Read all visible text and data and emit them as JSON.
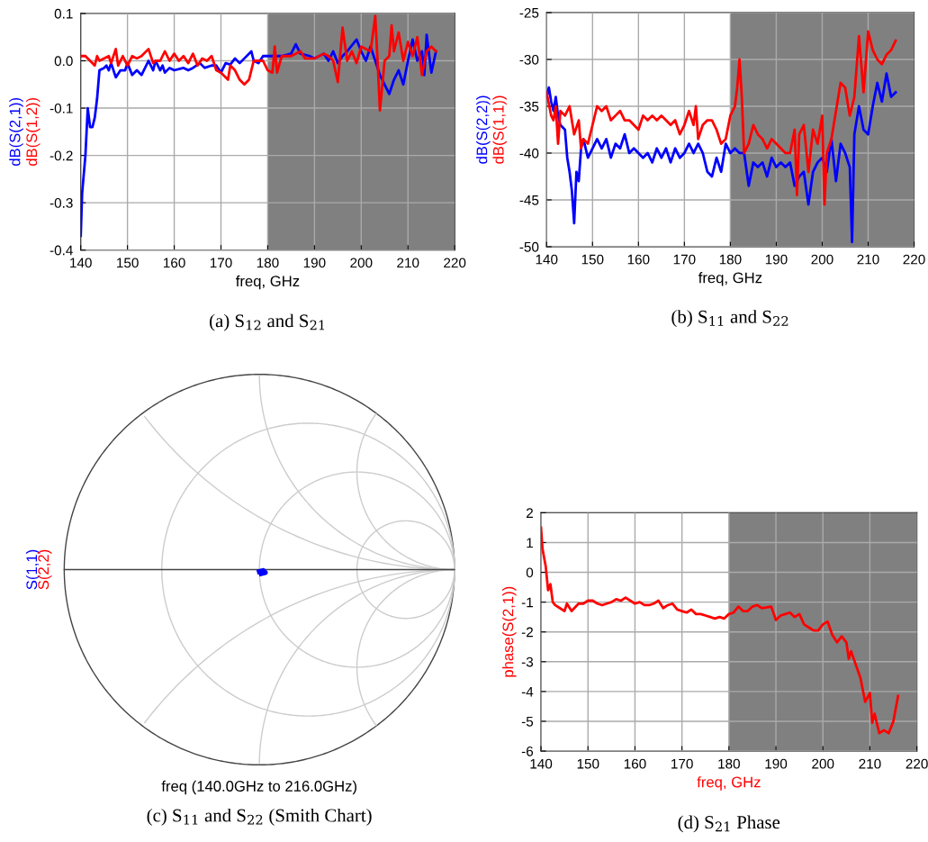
{
  "chart_data": [
    {
      "type": "line",
      "xlabel": "freq, GHz",
      "xlim": [
        140,
        220
      ],
      "xticks": [
        140,
        150,
        160,
        170,
        180,
        190,
        200,
        210,
        220
      ],
      "ylim": [
        -0.4,
        0.1
      ],
      "yticks": [
        {
          "value": -0.4,
          "label": "-0.4"
        },
        {
          "value": -0.3,
          "label": "-0.3"
        },
        {
          "value": -0.2,
          "label": "-0.2"
        },
        {
          "value": -0.1,
          "label": "-0.1"
        },
        {
          "value": 0,
          "label": "0.0"
        },
        {
          "value": 0.1,
          "label": "0.1"
        }
      ],
      "grid": true,
      "bands": [
        {
          "axis": "x",
          "from": 180,
          "to": 220,
          "color": "#808080"
        }
      ],
      "annotations": [
        "(a) S$_{12}$ and S$_{21}$"
      ],
      "series": [
        {
          "name": "dB(S(2,1))",
          "color": "#0000ff",
          "x": [
            140,
            140.3,
            141,
            141.5,
            142,
            142.5,
            143,
            143.5,
            144,
            145,
            145.5,
            146,
            146.5,
            147.5,
            148.5,
            149.5,
            150,
            151,
            152,
            153,
            154.5,
            155.5,
            156,
            157,
            157.5,
            158,
            159,
            160,
            162,
            163,
            164,
            165.5,
            166.5,
            168,
            169,
            170,
            171,
            172,
            173,
            174,
            175,
            176.5,
            177,
            178,
            179,
            180,
            181,
            183,
            185,
            186,
            187,
            189,
            190,
            192,
            193,
            194,
            195,
            196,
            197,
            199,
            200,
            201,
            202,
            203,
            204,
            206,
            207,
            208,
            209,
            210,
            211,
            212,
            213,
            213.5,
            214,
            215,
            216
          ],
          "values": [
            -0.37,
            -0.28,
            -0.2,
            -0.1,
            -0.14,
            -0.14,
            -0.12,
            -0.08,
            -0.02,
            -0.015,
            -0.01,
            -0.02,
            -0.005,
            -0.035,
            -0.02,
            -0.02,
            -0.005,
            -0.03,
            -0.02,
            -0.03,
            0.0,
            -0.02,
            0.0,
            -0.02,
            -0.01,
            -0.025,
            -0.015,
            -0.02,
            -0.015,
            -0.02,
            -0.015,
            -0.005,
            -0.015,
            -0.01,
            -0.01,
            -0.025,
            -0.005,
            -0.008,
            0.005,
            -0.005,
            0.005,
            0.02,
            0.0,
            -0.005,
            0.01,
            0.01,
            0.01,
            0.01,
            0.015,
            0.035,
            0.015,
            0.01,
            0.005,
            0.015,
            0.0,
            0.02,
            -0.005,
            0.01,
            0.02,
            0.045,
            0.02,
            0.0,
            0.03,
            0.0,
            -0.03,
            -0.07,
            -0.04,
            -0.02,
            -0.05,
            0.0,
            0.045,
            0.0,
            0.02,
            -0.03,
            0.055,
            -0.025,
            0.02
          ]
        },
        {
          "name": "dB(S(1,2))",
          "color": "#ff0000",
          "x": [
            140,
            141,
            142,
            143,
            143.5,
            144,
            146,
            146.5,
            147.5,
            148,
            149,
            150,
            151,
            152,
            153,
            154.5,
            155.5,
            156,
            157,
            158,
            159,
            160,
            161,
            162,
            163,
            164,
            165,
            166,
            167,
            168,
            169,
            170,
            171.5,
            172,
            173,
            174,
            175,
            176,
            177,
            178,
            179,
            180,
            181,
            181.5,
            182,
            183,
            185,
            187,
            188,
            190,
            192,
            193,
            194,
            195,
            196,
            197,
            198,
            199,
            200,
            202,
            203,
            203.5,
            204,
            205,
            206,
            206.5,
            207,
            208,
            209,
            210,
            211,
            212,
            213,
            214,
            215,
            216
          ],
          "values": [
            0.01,
            0.01,
            0.0,
            -0.01,
            0.01,
            0.0,
            0.01,
            -0.005,
            0.025,
            -0.01,
            0.01,
            -0.01,
            0.01,
            0.005,
            0.01,
            0.025,
            -0.005,
            0.0,
            0.0,
            0.02,
            0.0,
            0.015,
            0.0,
            0.01,
            -0.005,
            0.015,
            -0.01,
            0.005,
            0.0,
            0.01,
            -0.02,
            -0.025,
            -0.04,
            -0.01,
            -0.02,
            -0.04,
            -0.05,
            -0.04,
            0.0,
            0.0,
            0.0,
            -0.02,
            -0.025,
            0.03,
            -0.025,
            0.01,
            0.01,
            0.02,
            0.005,
            0.005,
            0.015,
            0.01,
            0.0,
            -0.045,
            0.07,
            0.0,
            0.02,
            -0.005,
            0.03,
            0.02,
            0.095,
            0.0,
            -0.105,
            0.0,
            0.01,
            0.075,
            0.02,
            0.06,
            0.0,
            0.04,
            0.01,
            0.05,
            -0.03,
            0.02,
            0.03,
            0.02
          ]
        }
      ]
    },
    {
      "type": "line",
      "xlabel": "freq, GHz",
      "xlim": [
        140,
        220
      ],
      "xticks": [
        140,
        150,
        160,
        170,
        180,
        190,
        200,
        210,
        220
      ],
      "ylim": [
        -50,
        -25
      ],
      "yticks": [
        -50,
        -45,
        -40,
        -35,
        -30,
        -25
      ],
      "grid": true,
      "bands": [
        {
          "axis": "x",
          "from": 180,
          "to": 220,
          "color": "#808080"
        }
      ],
      "annotations": [
        "(b) S$_{11}$ and S$_{22}$"
      ],
      "series": [
        {
          "name": "dB(S(2,2))",
          "color": "#0000ff",
          "x": [
            140,
            140.5,
            141,
            141.5,
            142,
            142.5,
            143,
            144,
            144.5,
            145,
            145.5,
            146,
            146.5,
            147,
            147.5,
            148,
            149,
            150,
            151,
            152,
            153,
            154,
            155,
            156,
            157,
            158,
            159,
            160,
            161,
            162,
            163,
            164,
            165,
            166,
            167,
            168,
            169,
            170,
            171,
            172,
            173,
            174,
            175,
            176,
            177,
            178,
            179,
            180,
            181,
            182,
            183,
            184,
            185,
            186,
            187,
            188,
            189,
            190,
            191,
            192,
            193,
            194,
            195,
            196,
            197,
            198,
            199,
            200,
            201,
            202,
            203,
            204,
            205,
            206,
            206.5,
            207,
            208,
            209,
            210,
            211,
            212,
            213,
            214,
            215,
            216
          ],
          "values": [
            -34,
            -33,
            -34.5,
            -35.5,
            -34,
            -36,
            -37,
            -37.5,
            -40.5,
            -42,
            -44,
            -47.5,
            -42,
            -43,
            -39.5,
            -38.5,
            -40.5,
            -39.5,
            -38.5,
            -39.5,
            -38.5,
            -40.5,
            -39,
            -39.5,
            -38,
            -40,
            -39.5,
            -40,
            -40.5,
            -40,
            -41,
            -39.5,
            -40.5,
            -39.5,
            -41,
            -39.5,
            -40.5,
            -40,
            -39,
            -40,
            -39,
            -40,
            -42,
            -42.5,
            -40.5,
            -42,
            -39,
            -40,
            -39.5,
            -40,
            -40,
            -43.5,
            -41,
            -41.5,
            -41,
            -42.5,
            -40.5,
            -41.5,
            -41,
            -41.5,
            -41,
            -43.5,
            -42.5,
            -42,
            -45.5,
            -42,
            -41,
            -40.5,
            -42,
            -38.5,
            -43,
            -39,
            -40,
            -41.5,
            -49.5,
            -38,
            -35,
            -37.5,
            -38,
            -35,
            -32.5,
            -34.5,
            -31.5,
            -34,
            -33.5
          ]
        },
        {
          "name": "dB(S(1,1))",
          "color": "#ff0000",
          "x": [
            140,
            141,
            141.5,
            142,
            142.5,
            143,
            144,
            145,
            146,
            147,
            147.5,
            148,
            149,
            150,
            151,
            152,
            153,
            154,
            155,
            156,
            157,
            158,
            159,
            160,
            161,
            162,
            163,
            164,
            165,
            166,
            167,
            168,
            169,
            170,
            171,
            172,
            172.5,
            173,
            174,
            175,
            176,
            177,
            178,
            179,
            180,
            181,
            181.5,
            182,
            182.5,
            183,
            184,
            185,
            186,
            187,
            188,
            189,
            190,
            191,
            192,
            193,
            194,
            194.5,
            195,
            196,
            197,
            198,
            199,
            200,
            200.5,
            201,
            202,
            203,
            204,
            205,
            206,
            207,
            208,
            209,
            210,
            211,
            212,
            213,
            214,
            215,
            216
          ],
          "values": [
            -33.5,
            -36,
            -36.5,
            -35,
            -39,
            -35.5,
            -36,
            -35,
            -38,
            -36.5,
            -39.5,
            -38.5,
            -39,
            -37,
            -35,
            -35.5,
            -35,
            -36.5,
            -36,
            -35.5,
            -36.5,
            -36.5,
            -37,
            -37.5,
            -36,
            -36.5,
            -36,
            -36.5,
            -36,
            -36.5,
            -37,
            -36.5,
            -38,
            -37,
            -35.5,
            -37,
            -35,
            -38.5,
            -37,
            -36.5,
            -36.5,
            -37.5,
            -39,
            -38.5,
            -36,
            -35,
            -33,
            -30,
            -34,
            -40,
            -39,
            -37,
            -38,
            -38.5,
            -39.5,
            -38.5,
            -39,
            -39.5,
            -40,
            -40,
            -37.5,
            -44.5,
            -38,
            -37,
            -42,
            -37.5,
            -39,
            -36,
            -45.5,
            -40,
            -38.5,
            -35.5,
            -32.5,
            -33,
            -36,
            -34,
            -27.5,
            -33.5,
            -27,
            -29,
            -30,
            -30.5,
            -29.5,
            -29,
            -28
          ]
        }
      ]
    },
    {
      "type": "other",
      "xlabel": "freq (140.0GHz to 216.0GHz)",
      "annotations": [
        "(c) S$_{11}$ and S$_{22}$ (Smith Chart)"
      ],
      "series": [
        {
          "name": "S(1,1)",
          "color": "#0000ff"
        },
        {
          "name": "S(2,2)",
          "color": "#ff0000"
        }
      ]
    },
    {
      "type": "line",
      "xlabel": "freq, GHz",
      "ylabel": "phase(S(2,1))",
      "xlim": [
        140,
        220
      ],
      "xticks": [
        140,
        150,
        160,
        170,
        180,
        190,
        200,
        210,
        220
      ],
      "ylim": [
        -6,
        2
      ],
      "yticks": [
        -6,
        -5,
        -4,
        -3,
        -2,
        -1,
        0,
        1,
        2
      ],
      "grid": true,
      "bands": [
        {
          "axis": "x",
          "from": 180,
          "to": 220,
          "color": "#808080"
        }
      ],
      "annotations": [
        "(d) S$_{21}$ Phase"
      ],
      "series": [
        {
          "color": "#ff0000",
          "x": [
            140,
            140.3,
            141,
            141.5,
            142,
            142.5,
            143,
            144,
            145,
            145.5,
            146.5,
            148,
            149,
            150,
            151,
            152,
            153,
            154,
            155,
            156,
            157,
            158,
            159,
            160,
            161,
            162,
            163,
            164,
            165,
            166,
            167,
            168,
            169,
            170,
            171,
            172,
            173,
            174,
            175,
            176,
            177,
            178,
            179,
            180,
            181,
            182,
            183,
            184,
            185,
            186,
            187,
            189,
            190,
            191,
            192,
            193,
            194,
            195,
            196,
            197,
            198,
            199,
            200,
            201,
            202,
            203,
            204,
            205,
            205.5,
            206,
            207,
            208,
            209,
            210,
            210.5,
            211,
            212,
            213,
            214,
            215,
            216
          ],
          "values": [
            1.5,
            0.8,
            0.2,
            -0.6,
            -0.4,
            -1.0,
            -1.1,
            -1.2,
            -1.3,
            -1.05,
            -1.3,
            -1.05,
            -1.05,
            -0.95,
            -0.95,
            -1.05,
            -1.1,
            -1.05,
            -1.0,
            -0.9,
            -0.95,
            -0.85,
            -0.95,
            -1.05,
            -1.0,
            -1.1,
            -1.1,
            -1.05,
            -0.95,
            -1.2,
            -1.1,
            -1.05,
            -1.25,
            -1.3,
            -1.35,
            -1.25,
            -1.4,
            -1.4,
            -1.45,
            -1.5,
            -1.55,
            -1.5,
            -1.55,
            -1.4,
            -1.35,
            -1.15,
            -1.3,
            -1.3,
            -1.15,
            -1.1,
            -1.2,
            -1.15,
            -1.6,
            -1.45,
            -1.4,
            -1.35,
            -1.5,
            -1.4,
            -1.75,
            -1.85,
            -1.95,
            -1.95,
            -1.75,
            -1.65,
            -2.1,
            -2.35,
            -2.15,
            -2.35,
            -2.9,
            -2.65,
            -3.1,
            -3.55,
            -4.35,
            -4.05,
            -5.05,
            -4.75,
            -5.4,
            -5.3,
            -5.4,
            -5.0,
            -4.15
          ]
        }
      ]
    }
  ]
}
